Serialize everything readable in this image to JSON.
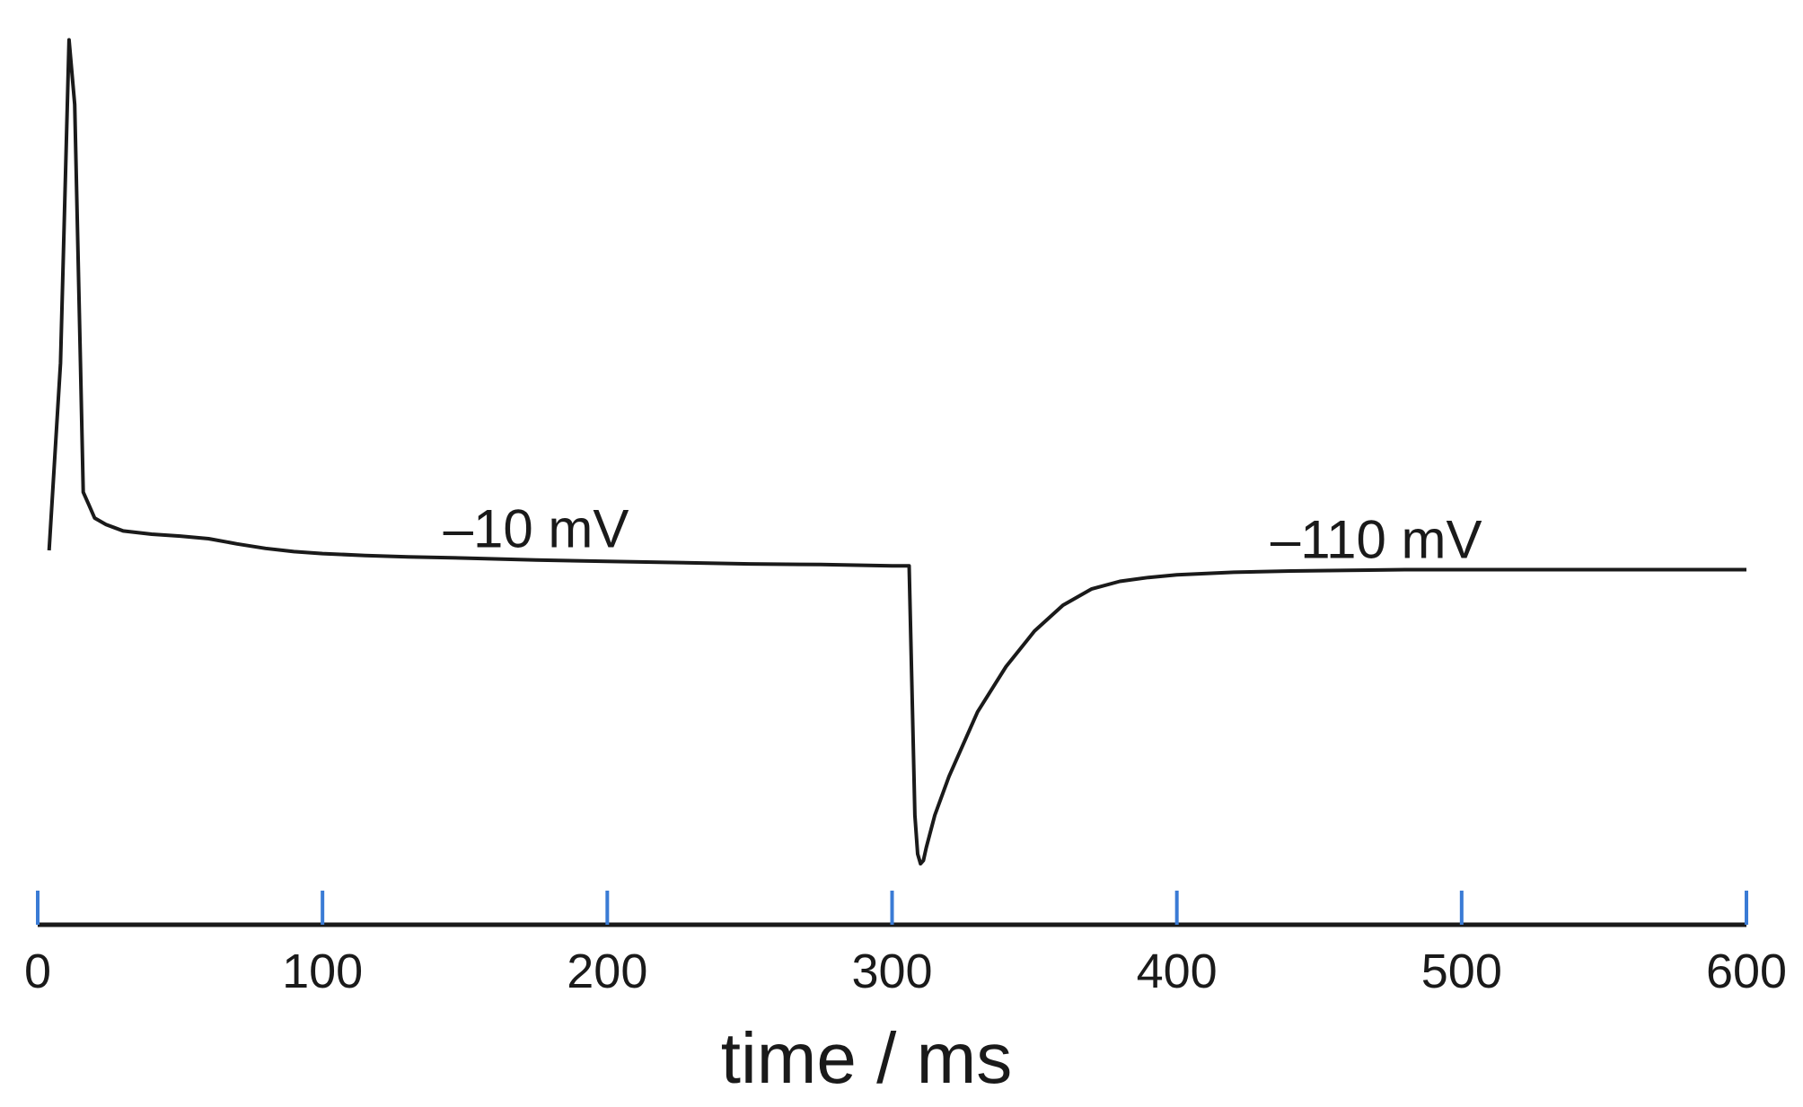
{
  "chart_data": {
    "type": "line",
    "title": "",
    "xlabel": "time / ms",
    "ylabel": "",
    "xlim": [
      0,
      600
    ],
    "x_ticks": [
      0,
      100,
      200,
      300,
      400,
      500,
      600
    ],
    "x_tick_labels": [
      "0",
      "100",
      "200",
      "300",
      "400",
      "500",
      "600"
    ],
    "grid": false,
    "legend": "none",
    "colors": {
      "line": "#1a1a1a",
      "axis": "#1a1a1a",
      "tick": "#3a7bd5"
    },
    "series": [
      {
        "name": "",
        "x": [
          4,
          8,
          11,
          13,
          15,
          16,
          18,
          20,
          24,
          30,
          40,
          50,
          60,
          70,
          80,
          90,
          100,
          115,
          130,
          150,
          175,
          200,
          225,
          250,
          275,
          300,
          306,
          308,
          309,
          310,
          311,
          312,
          315,
          320,
          330,
          340,
          350,
          360,
          370,
          380,
          390,
          400,
          420,
          440,
          460,
          480,
          500,
          520,
          540,
          560,
          580,
          600
        ],
        "y": [
          71,
          100,
          150,
          140,
          100,
          80,
          78,
          76,
          75,
          74,
          73.5,
          73.2,
          72.8,
          72,
          71.3,
          70.8,
          70.5,
          70.2,
          70,
          69.8,
          69.5,
          69.3,
          69.1,
          68.9,
          68.8,
          68.6,
          68.6,
          30,
          24,
          22.5,
          23,
          25,
          30,
          36,
          46,
          53,
          58.5,
          62.5,
          65,
          66.2,
          66.8,
          67.2,
          67.6,
          67.8,
          67.9,
          68,
          68,
          68,
          68,
          68,
          68,
          68
        ]
      }
    ],
    "annotations": [
      {
        "text": "–10 mV",
        "x": 175,
        "y": 71.5
      },
      {
        "text": "–110 mV",
        "x": 470,
        "y": 69.8
      }
    ]
  }
}
